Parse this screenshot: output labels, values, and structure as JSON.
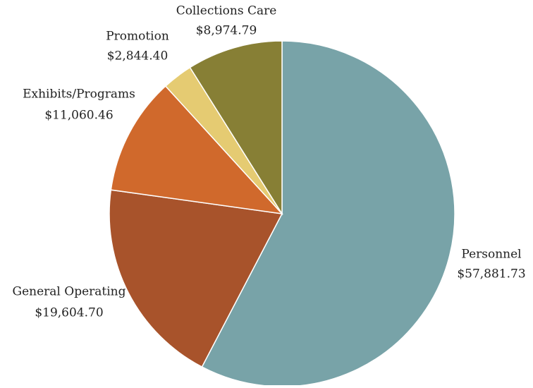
{
  "chart_data": {
    "type": "pie",
    "title": "",
    "start_angle_deg": 0,
    "direction": "clockwise",
    "slices": [
      {
        "label": "Personnel",
        "value_text": "$57,881.73",
        "value": 57881.73,
        "color": "#78a3a8"
      },
      {
        "label": "General Operating",
        "value_text": "$19,604.70",
        "value": 19604.7,
        "color": "#a8532b"
      },
      {
        "label": "Exhibits/Programs",
        "value_text": "$11,060.46",
        "value": 11060.46,
        "color": "#d0692c"
      },
      {
        "label": "Promotion",
        "value_text": "$2,844.40",
        "value": 2844.4,
        "color": "#e5cb72"
      },
      {
        "label": "Collections Care",
        "value_text": "$8,974.79",
        "value": 8974.79,
        "color": "#877f35"
      }
    ]
  }
}
